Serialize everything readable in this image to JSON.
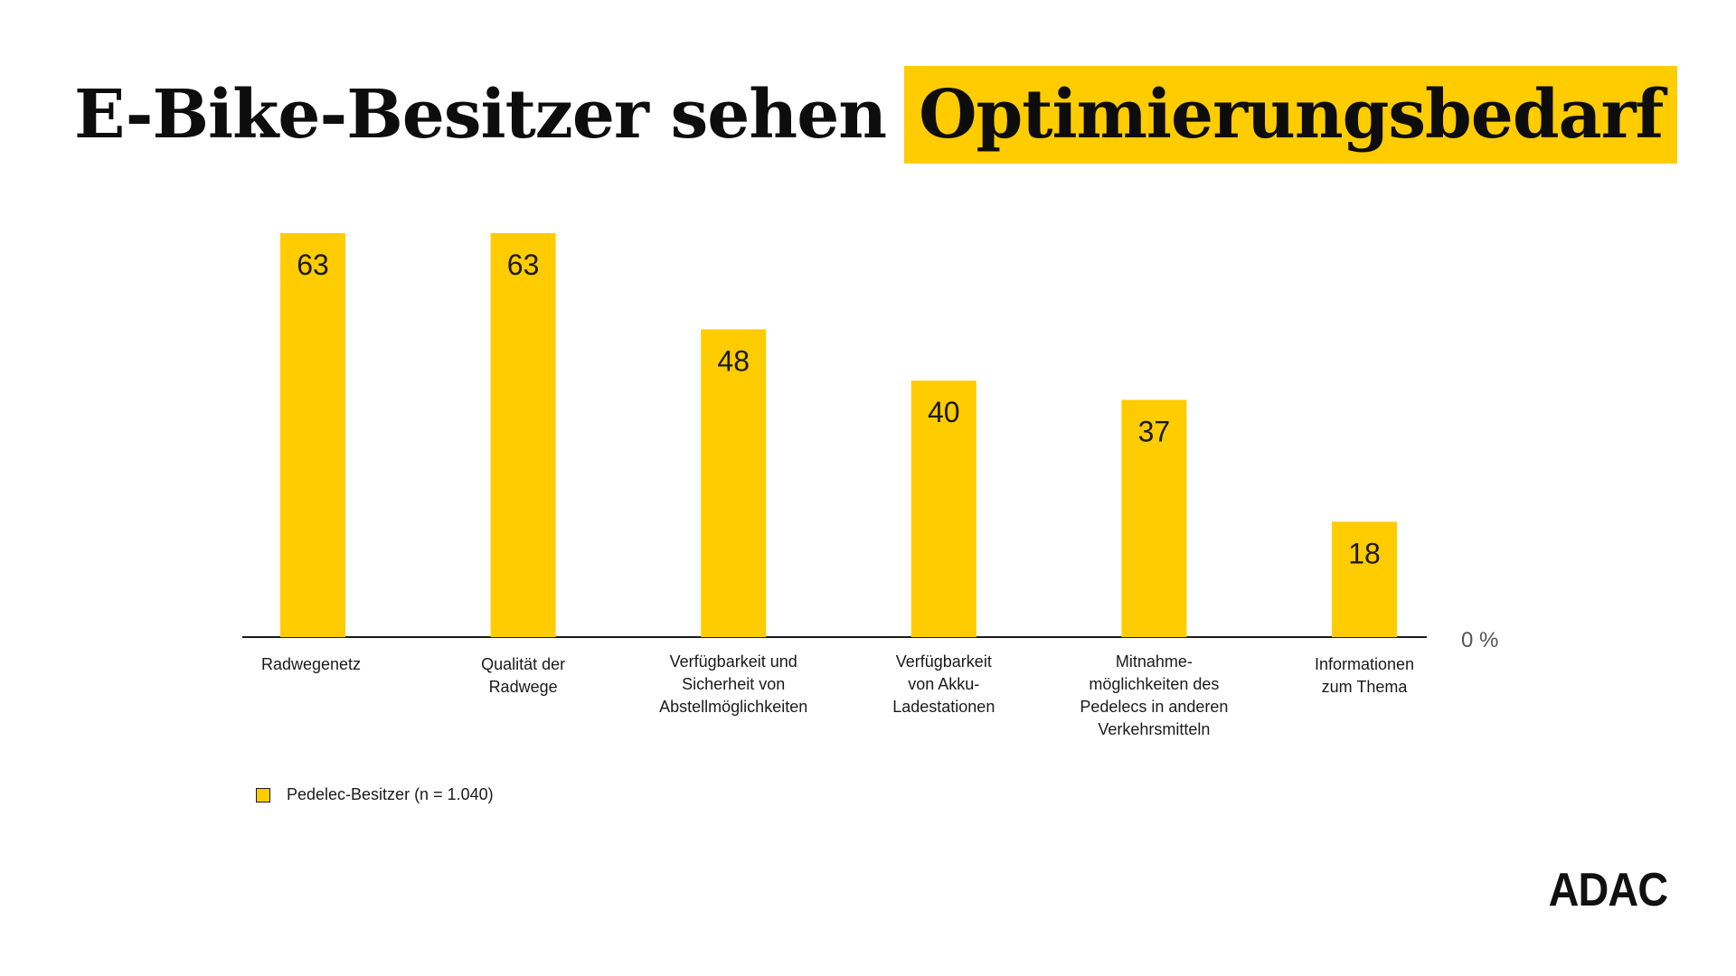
{
  "header": {
    "title_plain": "E-Bike-Besitzer sehen",
    "title_highlight": "Optimierungsbedarf"
  },
  "colors": {
    "bar": "#ffcc00",
    "text": "#1a1a1a",
    "axis": "#1a1a1a",
    "muted": "#555555"
  },
  "chart_data": {
    "type": "bar",
    "categories": [
      [
        "Radwegenetz"
      ],
      [
        "Qualität der",
        "Radwege"
      ],
      [
        "Verfügbarkeit und",
        "Sicherheit von",
        "Abstellmöglichkeiten"
      ],
      [
        "Verfügbarkeit",
        "von Akku-",
        "Ladestationen"
      ],
      [
        "Mitnahme-",
        "möglichkeiten des",
        "Pedelecs in anderen",
        "Verkehrsmitteln"
      ],
      [
        "Informationen",
        "zum Thema"
      ]
    ],
    "series": [
      {
        "name": "Pedelec-Besitzer (n = 1.040)",
        "values": [
          63,
          63,
          48,
          40,
          37,
          18
        ]
      }
    ],
    "y_label": "0 %",
    "ylim": [
      0,
      63
    ],
    "grid": false,
    "legend_position": "bottom-left"
  },
  "legend": {
    "label": "Pedelec-Besitzer (n = 1.040)"
  },
  "brand": {
    "logo_text": "ADAC"
  }
}
